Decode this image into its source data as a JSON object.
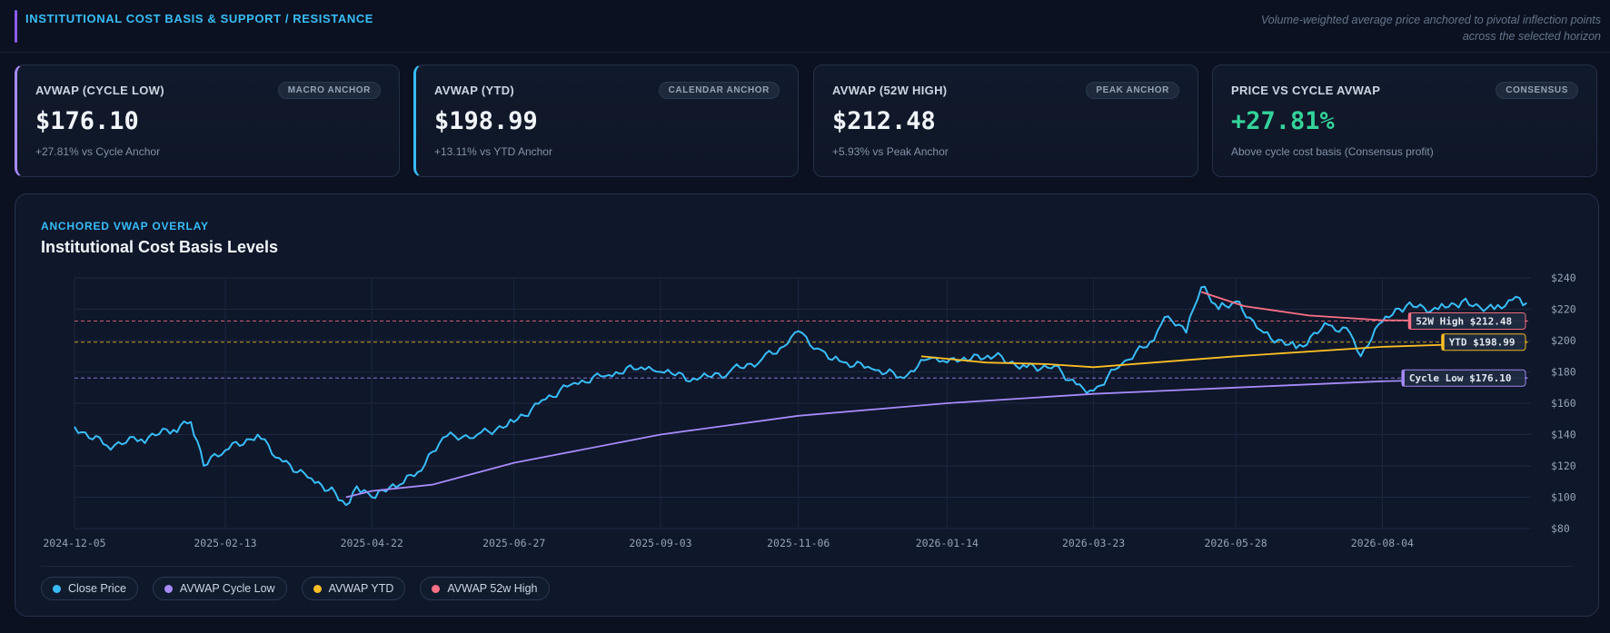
{
  "header": {
    "title": "INSTITUTIONAL COST BASIS & SUPPORT / RESISTANCE",
    "subtitle_line1": "Volume-weighted average price anchored to pivotal inflection points",
    "subtitle_line2": "across the selected horizon"
  },
  "cards": [
    {
      "label": "AVWAP (CYCLE LOW)",
      "badge": "MACRO ANCHOR",
      "value": "$176.10",
      "sub": "+27.81% vs Cycle Anchor"
    },
    {
      "label": "AVWAP (YTD)",
      "badge": "CALENDAR ANCHOR",
      "value": "$198.99",
      "sub": "+13.11% vs YTD Anchor"
    },
    {
      "label": "AVWAP (52W HIGH)",
      "badge": "PEAK ANCHOR",
      "value": "$212.48",
      "sub": "+5.93% vs Peak Anchor"
    },
    {
      "label": "PRICE VS CYCLE AVWAP",
      "badge": "CONSENSUS",
      "value": "+27.81%",
      "sub": "Above cycle cost basis (Consensus profit)"
    }
  ],
  "panel": {
    "kicker": "ANCHORED VWAP OVERLAY",
    "title": "Institutional Cost Basis Levels"
  },
  "legend": [
    {
      "label": "Close Price",
      "color": "#38bdf8"
    },
    {
      "label": "AVWAP Cycle Low",
      "color": "#a78bfa"
    },
    {
      "label": "AVWAP YTD",
      "color": "#fbbf24"
    },
    {
      "label": "AVWAP 52w High",
      "color": "#fb7185"
    }
  ],
  "chart_data": {
    "type": "line",
    "x_tick_labels": [
      "2024-12-05",
      "2025-02-13",
      "2025-04-22",
      "2025-06-27",
      "2025-09-03",
      "2025-11-06",
      "2026-01-14",
      "2026-03-23",
      "2026-05-28",
      "2026-08-04"
    ],
    "y_tick_labels": [
      "$80",
      "$100",
      "$120",
      "$140",
      "$160",
      "$180",
      "$200",
      "$220",
      "$240"
    ],
    "ylim": [
      80,
      240
    ],
    "grid": true,
    "legend_position": "bottom-left",
    "series": [
      {
        "name": "Close Price",
        "color": "#38bdf8",
        "points": [
          [
            "2024-12-05",
            145
          ],
          [
            "2024-12-20",
            133
          ],
          [
            "2025-01-05",
            137
          ],
          [
            "2025-01-20",
            143
          ],
          [
            "2025-01-28",
            148
          ],
          [
            "2025-02-03",
            120
          ],
          [
            "2025-02-13",
            130
          ],
          [
            "2025-02-28",
            140
          ],
          [
            "2025-03-10",
            125
          ],
          [
            "2025-03-25",
            112
          ],
          [
            "2025-04-05",
            103
          ],
          [
            "2025-04-10",
            95
          ],
          [
            "2025-04-15",
            107
          ],
          [
            "2025-04-22",
            100
          ],
          [
            "2025-05-05",
            108
          ],
          [
            "2025-05-15",
            117
          ],
          [
            "2025-05-25",
            138
          ],
          [
            "2025-06-10",
            140
          ],
          [
            "2025-06-27",
            148
          ],
          [
            "2025-07-10",
            162
          ],
          [
            "2025-07-25",
            173
          ],
          [
            "2025-08-10",
            178
          ],
          [
            "2025-08-25",
            183
          ],
          [
            "2025-09-03",
            180
          ],
          [
            "2025-09-20",
            175
          ],
          [
            "2025-10-05",
            180
          ],
          [
            "2025-10-20",
            188
          ],
          [
            "2025-11-01",
            198
          ],
          [
            "2025-11-06",
            206
          ],
          [
            "2025-11-15",
            195
          ],
          [
            "2025-11-25",
            187
          ],
          [
            "2025-12-10",
            182
          ],
          [
            "2025-12-25",
            176
          ],
          [
            "2026-01-05",
            188
          ],
          [
            "2026-01-14",
            186
          ],
          [
            "2026-01-25",
            188
          ],
          [
            "2026-02-05",
            190
          ],
          [
            "2026-02-20",
            183
          ],
          [
            "2026-03-05",
            184
          ],
          [
            "2026-03-15",
            172
          ],
          [
            "2026-03-23",
            168
          ],
          [
            "2026-04-05",
            185
          ],
          [
            "2026-04-20",
            200
          ],
          [
            "2026-04-25",
            215
          ],
          [
            "2026-05-05",
            205
          ],
          [
            "2026-05-12",
            234
          ],
          [
            "2026-05-20",
            220
          ],
          [
            "2026-05-28",
            225
          ],
          [
            "2026-06-10",
            205
          ],
          [
            "2026-06-25",
            195
          ],
          [
            "2026-07-10",
            210
          ],
          [
            "2026-07-20",
            205
          ],
          [
            "2026-07-25",
            190
          ],
          [
            "2026-08-04",
            212
          ],
          [
            "2026-08-15",
            222
          ],
          [
            "2026-08-30",
            220
          ],
          [
            "2026-09-10",
            225
          ],
          [
            "2026-09-25",
            220
          ],
          [
            "2026-10-05",
            228
          ],
          [
            "2026-10-10",
            224
          ]
        ]
      },
      {
        "name": "AVWAP Cycle Low",
        "color": "#a78bfa",
        "points": [
          [
            "2025-04-10",
            100
          ],
          [
            "2025-04-22",
            104
          ],
          [
            "2025-05-20",
            108
          ],
          [
            "2025-06-27",
            122
          ],
          [
            "2025-09-03",
            140
          ],
          [
            "2025-11-06",
            152
          ],
          [
            "2026-01-14",
            160
          ],
          [
            "2026-03-23",
            166
          ],
          [
            "2026-05-28",
            170
          ],
          [
            "2026-08-04",
            174
          ],
          [
            "2026-10-10",
            176.1
          ]
        ]
      },
      {
        "name": "AVWAP YTD",
        "color": "#fbbf24",
        "points": [
          [
            "2026-01-02",
            190
          ],
          [
            "2026-02-01",
            186
          ],
          [
            "2026-03-01",
            185
          ],
          [
            "2026-03-23",
            183
          ],
          [
            "2026-04-20",
            186
          ],
          [
            "2026-05-28",
            190
          ],
          [
            "2026-08-04",
            196
          ],
          [
            "2026-10-10",
            198.99
          ]
        ]
      },
      {
        "name": "AVWAP 52w High",
        "color": "#fb7185",
        "points": [
          [
            "2026-05-12",
            231
          ],
          [
            "2026-06-01",
            222
          ],
          [
            "2026-07-01",
            216
          ],
          [
            "2026-08-04",
            213
          ],
          [
            "2026-10-10",
            212.48
          ]
        ]
      }
    ],
    "levels": [
      {
        "label": "52W High $212.48",
        "value": 212.48,
        "color": "#fb7185"
      },
      {
        "label": "YTD $198.99",
        "value": 198.99,
        "color": "#fbbf24"
      },
      {
        "label": "Cycle Low $176.10",
        "value": 176.1,
        "color": "#a78bfa"
      }
    ]
  }
}
